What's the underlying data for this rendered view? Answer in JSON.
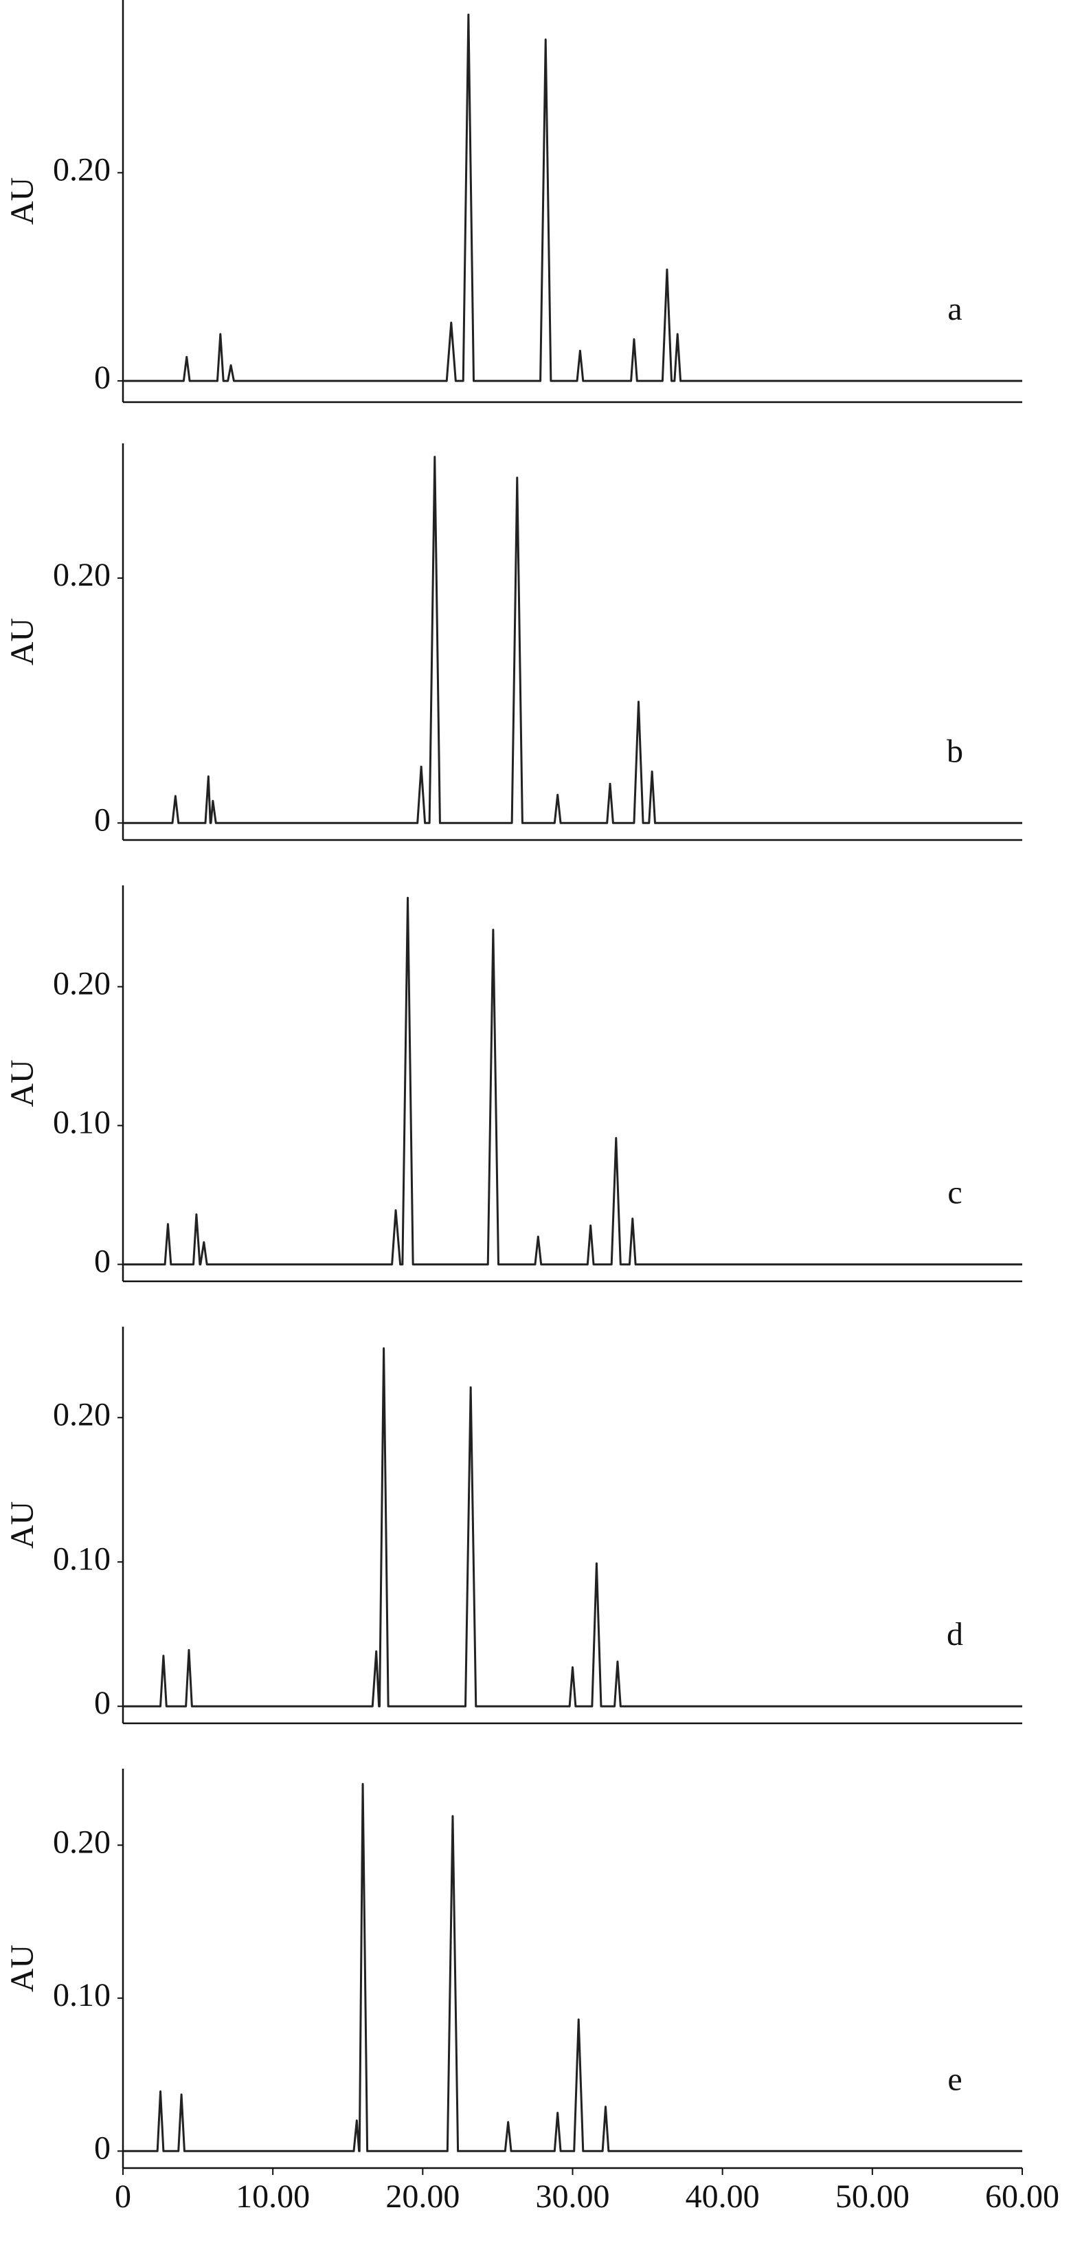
{
  "chart_data": [
    {
      "type": "line",
      "ylabel": "AU",
      "annotation": "a",
      "color": "#222222",
      "xlim": [
        0,
        60
      ],
      "ylim": [
        -0.0204,
        0.366
      ],
      "yticks": [
        0,
        {
          "value": 0.2,
          "label": "0.20"
        }
      ],
      "x": [
        0,
        4.05,
        4.25,
        4.45,
        6.3,
        6.5,
        6.7,
        7.0,
        7.2,
        7.4,
        21.6,
        21.9,
        22.2,
        22.7,
        23.05,
        23.4,
        27.85,
        28.2,
        28.55,
        30.3,
        30.5,
        30.7,
        33.9,
        34.1,
        34.3,
        36.0,
        36.3,
        36.6,
        36.8,
        37.0,
        37.2,
        60
      ],
      "values": [
        0,
        0,
        0.023,
        0,
        0,
        0.045,
        0,
        0,
        0.015,
        0,
        0,
        0.056,
        0,
        0,
        0.352,
        0,
        0,
        0.328,
        0,
        0,
        0.029,
        0,
        0,
        0.04,
        0,
        0,
        0.107,
        0,
        0,
        0.045,
        0,
        0
      ]
    },
    {
      "type": "line",
      "ylabel": "AU",
      "annotation": "b",
      "color": "#222222",
      "xlim": [
        0,
        60
      ],
      "ylim": [
        -0.0139,
        0.31
      ],
      "yticks": [
        0,
        {
          "value": 0.2,
          "label": "0.20"
        }
      ],
      "x": [
        0,
        3.3,
        3.5,
        3.7,
        5.5,
        5.7,
        5.83,
        5.87,
        6.0,
        6.2,
        19.65,
        19.9,
        20.15,
        20.45,
        20.8,
        21.15,
        25.95,
        26.3,
        26.65,
        28.8,
        29.0,
        29.2,
        32.3,
        32.5,
        32.7,
        34.1,
        34.4,
        34.7,
        35.1,
        35.3,
        35.5,
        60
      ],
      "values": [
        0,
        0,
        0.022,
        0,
        0,
        0.038,
        0,
        0,
        0.018,
        0,
        0,
        0.046,
        0,
        0,
        0.299,
        0,
        0,
        0.282,
        0,
        0,
        0.023,
        0,
        0,
        0.032,
        0,
        0,
        0.099,
        0,
        0,
        0.042,
        0,
        0
      ]
    },
    {
      "type": "line",
      "ylabel": "AU",
      "annotation": "c",
      "color": "#222222",
      "xlim": [
        0,
        60
      ],
      "ylim": [
        -0.0122,
        0.273
      ],
      "yticks": [
        0,
        {
          "value": 0.1,
          "label": "0.10"
        },
        {
          "value": 0.2,
          "label": "0.20"
        }
      ],
      "x": [
        0,
        2.8,
        3.0,
        3.2,
        4.7,
        4.9,
        5.13,
        5.17,
        5.4,
        5.6,
        17.95,
        18.2,
        18.5,
        18.65,
        19.0,
        19.35,
        24.35,
        24.7,
        25.05,
        27.5,
        27.7,
        27.9,
        31.0,
        31.2,
        31.4,
        32.6,
        32.9,
        33.2,
        33.8,
        34.0,
        34.2,
        60
      ],
      "values": [
        0,
        0,
        0.029,
        0,
        0,
        0.036,
        0,
        0,
        0.016,
        0,
        0,
        0.039,
        0,
        0,
        0.264,
        0,
        0,
        0.241,
        0,
        0,
        0.02,
        0,
        0,
        0.028,
        0,
        0,
        0.091,
        0,
        0,
        0.033,
        0,
        0
      ]
    },
    {
      "type": "line",
      "ylabel": "AU",
      "annotation": "d",
      "color": "#222222",
      "xlim": [
        0,
        60
      ],
      "ylim": [
        -0.0118,
        0.263
      ],
      "yticks": [
        0,
        {
          "value": 0.1,
          "label": "0.10"
        },
        {
          "value": 0.2,
          "label": "0.20"
        }
      ],
      "x": [
        0,
        2.5,
        2.7,
        2.9,
        4.2,
        4.4,
        4.6,
        16.65,
        16.9,
        17.08,
        17.12,
        17.4,
        17.7,
        22.85,
        23.2,
        23.55,
        29.8,
        30.0,
        30.2,
        31.3,
        31.6,
        31.9,
        32.8,
        33.0,
        33.2,
        60
      ],
      "values": [
        0,
        0,
        0.035,
        0,
        0,
        0.039,
        0,
        0,
        0.038,
        0,
        0,
        0.248,
        0,
        0,
        0.221,
        0,
        0,
        0.027,
        0,
        0,
        0.099,
        0,
        0,
        0.031,
        0,
        0
      ]
    },
    {
      "type": "line",
      "ylabel": "AU",
      "annotation": "e",
      "color": "#222222",
      "xlim": [
        0,
        60
      ],
      "ylim": [
        -0.0111,
        0.25
      ],
      "yticks": [
        0,
        {
          "value": 0.1,
          "label": "0.10"
        },
        {
          "value": 0.2,
          "label": "0.20"
        }
      ],
      "xticks": [
        0,
        {
          "value": 10,
          "label": "10.00"
        },
        {
          "value": 20,
          "label": "20.00"
        },
        {
          "value": 30,
          "label": "30.00"
        },
        {
          "value": 40,
          "label": "40.00"
        },
        {
          "value": 50,
          "label": "50.00"
        },
        {
          "value": 60,
          "label": "60.00"
        }
      ],
      "x": [
        0,
        2.3,
        2.5,
        2.7,
        3.7,
        3.9,
        4.1,
        15.4,
        15.6,
        15.75,
        15.78,
        16.0,
        16.3,
        21.65,
        22.0,
        22.35,
        25.5,
        25.7,
        25.9,
        28.8,
        29.0,
        29.2,
        30.1,
        30.4,
        30.7,
        32.0,
        32.2,
        32.4,
        60
      ],
      "values": [
        0,
        0,
        0.039,
        0,
        0,
        0.037,
        0,
        0,
        0.02,
        0,
        0,
        0.24,
        0,
        0,
        0.219,
        0,
        0,
        0.019,
        0,
        0,
        0.025,
        0,
        0,
        0.086,
        0,
        0,
        0.029,
        0,
        0
      ]
    }
  ]
}
